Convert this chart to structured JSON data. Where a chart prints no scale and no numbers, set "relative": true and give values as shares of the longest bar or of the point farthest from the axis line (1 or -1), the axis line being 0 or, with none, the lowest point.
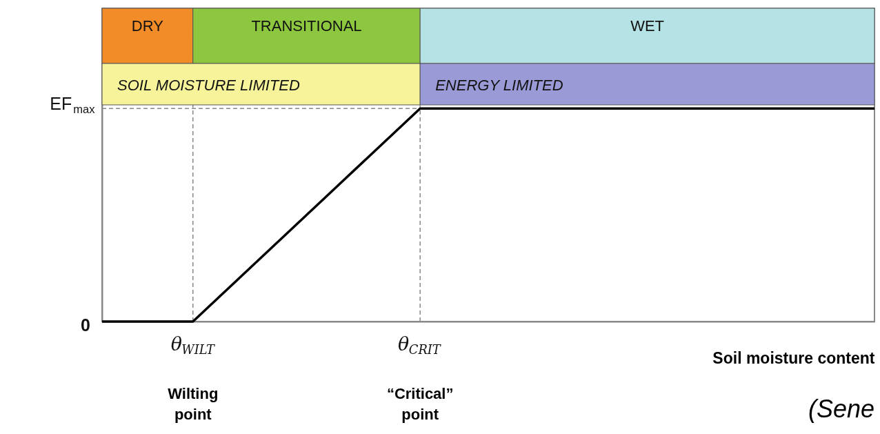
{
  "chart_data": {
    "type": "line",
    "xlabel": "Soil moisture content",
    "relative": true,
    "categories": [
      null,
      null,
      "θ$_{WILT}$",
      null,
      null,
      null,
      null,
      "θ$_{CRIT}$",
      null,
      null,
      null,
      null,
      null,
      null,
      null,
      null,
      null,
      null
    ],
    "series": [
      {
        "color": "#000000",
        "values": [
          0,
          0,
          0,
          0.2,
          0.4,
          0.6,
          0.8,
          1,
          1,
          1,
          1,
          1,
          1,
          1,
          1,
          1,
          1,
          1
        ]
      }
    ],
    "ref_lines": [
      {
        "axis": "x",
        "value": "θ$_{WILT}$",
        "line_style": "dashed",
        "color": "#888888"
      },
      {
        "axis": "x",
        "value": "θ$_{CRIT}$",
        "line_style": "dashed",
        "color": "#888888"
      },
      {
        "axis": "y",
        "value": 1,
        "line_style": "dashed",
        "color": "#888888"
      }
    ],
    "annotations": [
      "DRY",
      "TRANSITIONAL",
      "WET",
      "SOIL MOISTURE LIMITED",
      "ENERGY LIMITED",
      "EF$_{max}$",
      "0",
      "Wilting point",
      "“Critical” point",
      "(Sene"
    ],
    "marker": "none",
    "line_style": "solid",
    "grid": false
  }
}
